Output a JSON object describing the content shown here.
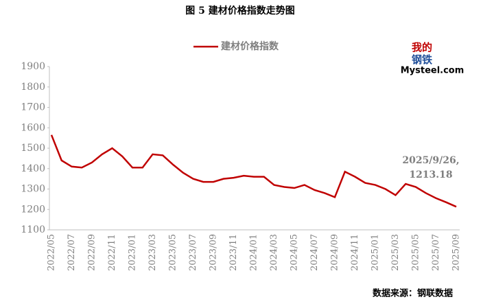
{
  "chart_data": {
    "type": "line",
    "title": "图 5  建材价格指数走势图",
    "categories": [
      "2022/05",
      null,
      "2022/07",
      null,
      "2022/09",
      null,
      "2022/11",
      null,
      "2023/01",
      null,
      "2023/03",
      null,
      "2023/05",
      null,
      "2023/07",
      null,
      "2023/09",
      null,
      "2023/11",
      null,
      "2024/01",
      null,
      "2024/03",
      null,
      "2024/05",
      null,
      "2024/07",
      null,
      "2024/09",
      null,
      "2024/11",
      null,
      "2025/01",
      null,
      "2025/03",
      null,
      "2025/05",
      null,
      "2025/07",
      null,
      "2025/09"
    ],
    "series": [
      {
        "name": "建材价格指数",
        "color": "#c00000",
        "values": [
          1565,
          1440,
          1410,
          1405,
          1430,
          1470,
          1500,
          1460,
          1405,
          1405,
          1470,
          1465,
          1420,
          1380,
          1350,
          1335,
          1335,
          1350,
          1355,
          1365,
          1360,
          1360,
          1320,
          1310,
          1305,
          1320,
          1295,
          1280,
          1260,
          1385,
          1360,
          1330,
          1320,
          1300,
          1270,
          1325,
          1310,
          1280,
          1255,
          1235,
          1213.18
        ]
      }
    ],
    "ylim": [
      1100,
      1900
    ],
    "yticks": [
      1100,
      1200,
      1300,
      1400,
      1500,
      1600,
      1700,
      1800,
      1900
    ],
    "annotation": [
      "2025/9/26,",
      "1213.18"
    ],
    "source": "数据来源：钢联数据"
  },
  "logo": {
    "top": "我的",
    "middle": "钢铁",
    "bottom": "Mysteel.com"
  }
}
